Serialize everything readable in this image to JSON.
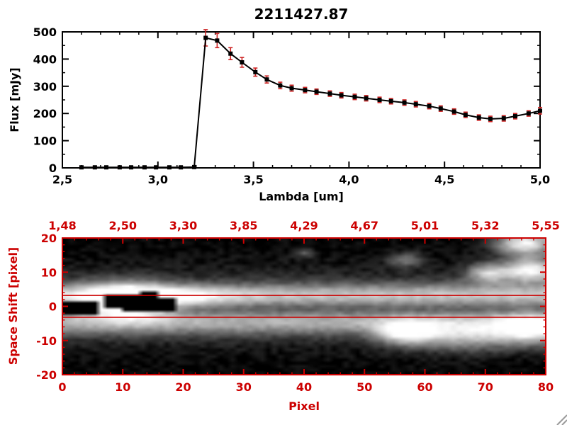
{
  "window": {
    "background": "#ffffff"
  },
  "accent_red": "#cc0000",
  "chart_data": [
    {
      "type": "line",
      "title": "2211427.87",
      "xlabel": "Lambda [um]",
      "ylabel": "Flux [mJy]",
      "xlim": [
        2.5,
        5.0
      ],
      "ylim": [
        0,
        500
      ],
      "grid": false,
      "legend": "none",
      "marker": "square",
      "marker_color": "#000000",
      "line_color": "#000000",
      "error_color": "#cc2222",
      "xticks": {
        "values": [
          2.5,
          3.0,
          3.5,
          4.0,
          4.5,
          5.0
        ],
        "labels": [
          "2,5",
          "3,0",
          "3,5",
          "4,0",
          "4,5",
          "5,0"
        ]
      },
      "yticks": {
        "values": [
          0,
          100,
          200,
          300,
          400,
          500
        ],
        "labels": [
          "0",
          "100",
          "200",
          "300",
          "400",
          "500"
        ]
      },
      "x": [
        2.6,
        2.67,
        2.73,
        2.8,
        2.86,
        2.93,
        2.99,
        3.06,
        3.12,
        3.19,
        3.25,
        3.31,
        3.38,
        3.44,
        3.51,
        3.57,
        3.64,
        3.7,
        3.77,
        3.83,
        3.9,
        3.96,
        4.03,
        4.09,
        4.16,
        4.22,
        4.29,
        4.35,
        4.42,
        4.48,
        4.55,
        4.61,
        4.68,
        4.74,
        4.81,
        4.87,
        4.94,
        5.0
      ],
      "y": [
        2,
        2,
        2,
        2,
        2,
        2,
        2,
        2,
        2,
        3,
        478,
        468,
        420,
        388,
        352,
        325,
        303,
        293,
        286,
        280,
        273,
        267,
        261,
        256,
        250,
        245,
        240,
        234,
        227,
        218,
        207,
        195,
        185,
        180,
        182,
        190,
        200,
        210
      ],
      "yerr": [
        4,
        4,
        4,
        4,
        4,
        4,
        4,
        4,
        4,
        4,
        30,
        26,
        22,
        18,
        15,
        13,
        12,
        11,
        10,
        10,
        10,
        10,
        10,
        10,
        10,
        10,
        10,
        10,
        10,
        10,
        10,
        10,
        10,
        10,
        10,
        10,
        10,
        12
      ]
    },
    {
      "type": "heatmap",
      "title": "",
      "xlabel": "Pixel",
      "ylabel": "Space Shift [pixel]",
      "xlim": [
        0,
        80
      ],
      "ylim": [
        -20,
        20
      ],
      "axis_color": "#cc0000",
      "colormap": "grayscale",
      "top_axis_labels": [
        "1,48",
        "2,50",
        "3,30",
        "3,85",
        "4,29",
        "4,67",
        "5,01",
        "5,32",
        "5,55"
      ],
      "top_axis_label_positions": [
        0,
        10,
        20,
        30,
        40,
        50,
        60,
        70,
        80
      ],
      "xticks": {
        "values": [
          0,
          10,
          20,
          30,
          40,
          50,
          60,
          70,
          80
        ],
        "labels": [
          "0",
          "10",
          "20",
          "30",
          "40",
          "50",
          "60",
          "70",
          "80"
        ]
      },
      "yticks": {
        "values": [
          -20,
          -10,
          0,
          10,
          20
        ],
        "labels": [
          "-20",
          "-10",
          "0",
          "10",
          "20"
        ]
      },
      "aperture_lines_y": [
        3.2,
        -3.2
      ],
      "bands": [
        {
          "y": 3.5,
          "sigma": 2.3,
          "amp": 0.55
        },
        {
          "y": -4.5,
          "sigma": 2.8,
          "amp": 0.5
        },
        {
          "y": 0,
          "sigma": 8.0,
          "amp": 0.22
        },
        {
          "y": -1.0,
          "sigma": 1.5,
          "amp": -0.18
        }
      ],
      "blobs": [
        {
          "x": 10,
          "y": 1.5,
          "sx": 5.0,
          "sy": 3.5,
          "a": 1.1
        },
        {
          "x": 20,
          "y": 3.0,
          "sx": 6.0,
          "sy": 2.0,
          "a": 0.3
        },
        {
          "x": 57,
          "y": -8.0,
          "sx": 3.5,
          "sy": 2.5,
          "a": 0.75
        },
        {
          "x": 67,
          "y": -9.0,
          "sx": 6.0,
          "sy": 3.0,
          "a": 0.55
        },
        {
          "x": 78,
          "y": -7.0,
          "sx": 4.0,
          "sy": 3.0,
          "a": 0.75
        },
        {
          "x": 71,
          "y": 10.0,
          "sx": 2.5,
          "sy": 2.0,
          "a": 0.7
        },
        {
          "x": 78,
          "y": 11.0,
          "sx": 3.0,
          "sy": 2.5,
          "a": 0.95
        },
        {
          "x": 77,
          "y": 19.0,
          "sx": 3.5,
          "sy": 2.5,
          "a": 0.95
        },
        {
          "x": 57,
          "y": 14.0,
          "sx": 2.0,
          "sy": 1.5,
          "a": 0.4
        },
        {
          "x": 40,
          "y": 16.0,
          "sx": 1.2,
          "sy": 1.0,
          "a": 0.3
        }
      ],
      "dark_regions": [
        {
          "x0": 7,
          "x1": 13,
          "y0": 0,
          "y1": 3
        },
        {
          "x0": 10,
          "x1": 18,
          "y0": -1,
          "y1": 2
        },
        {
          "x0": 13,
          "x1": 15,
          "y0": 3,
          "y1": 4.5
        },
        {
          "x0": 0,
          "x1": 5,
          "y0": -2,
          "y1": 1
        }
      ]
    }
  ]
}
